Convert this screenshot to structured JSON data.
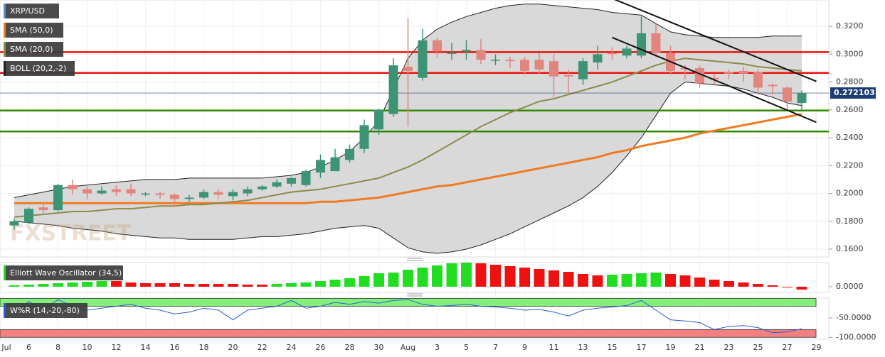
{
  "chart_data": [
    {
      "type": "candlestick",
      "name": "XRP/USD",
      "color_up": "#3d9475",
      "color_down": "#e2857e",
      "categories": [
        "Jul 5",
        "Jul 6",
        "Jul 7",
        "Jul 8",
        "Jul 9",
        "Jul 10",
        "Jul 11",
        "Jul 12",
        "Jul 13",
        "Jul 14",
        "Jul 15",
        "Jul 16",
        "Jul 17",
        "Jul 18",
        "Jul 19",
        "Jul 20",
        "Jul 21",
        "Jul 22",
        "Jul 23",
        "Jul 24",
        "Jul 25",
        "Jul 26",
        "Jul 27",
        "Jul 28",
        "Jul 29",
        "Jul 30",
        "Jul 31",
        "Aug 1",
        "Aug 2",
        "Aug 3",
        "Aug 4",
        "Aug 5",
        "Aug 6",
        "Aug 7",
        "Aug 8",
        "Aug 9",
        "Aug 10",
        "Aug 11",
        "Aug 12",
        "Aug 13",
        "Aug 14",
        "Aug 15",
        "Aug 16",
        "Aug 17",
        "Aug 18",
        "Aug 19",
        "Aug 20",
        "Aug 21",
        "Aug 22",
        "Aug 23",
        "Aug 24",
        "Aug 25",
        "Aug 26",
        "Aug 27",
        "Aug 28"
      ],
      "open": [
        0.177,
        0.179,
        0.19,
        0.188,
        0.206,
        0.203,
        0.2,
        0.203,
        0.203,
        0.2,
        0.2,
        0.199,
        0.196,
        0.197,
        0.201,
        0.198,
        0.2,
        0.203,
        0.205,
        0.207,
        0.206,
        0.215,
        0.216,
        0.224,
        0.232,
        0.246,
        0.257,
        0.291,
        0.283,
        0.31,
        0.301,
        0.302,
        0.303,
        0.296,
        0.296,
        0.296,
        0.296,
        0.295,
        0.285,
        0.282,
        0.294,
        0.301,
        0.299,
        0.299,
        0.315,
        0.301,
        0.29,
        0.29,
        0.283,
        0.287,
        0.288,
        0.287,
        0.278,
        0.276,
        0.265
      ],
      "high": [
        0.182,
        0.19,
        0.192,
        0.207,
        0.21,
        0.205,
        0.205,
        0.206,
        0.207,
        0.201,
        0.201,
        0.2,
        0.199,
        0.203,
        0.203,
        0.203,
        0.205,
        0.206,
        0.21,
        0.212,
        0.217,
        0.228,
        0.232,
        0.235,
        0.253,
        0.261,
        0.297,
        0.326,
        0.318,
        0.312,
        0.308,
        0.31,
        0.311,
        0.3,
        0.298,
        0.298,
        0.301,
        0.3,
        0.289,
        0.297,
        0.306,
        0.305,
        0.306,
        0.327,
        0.322,
        0.306,
        0.292,
        0.292,
        0.286,
        0.289,
        0.291,
        0.289,
        0.279,
        0.277,
        0.274
      ],
      "low": [
        0.174,
        0.178,
        0.186,
        0.187,
        0.199,
        0.196,
        0.199,
        0.198,
        0.198,
        0.198,
        0.196,
        0.19,
        0.194,
        0.196,
        0.196,
        0.195,
        0.198,
        0.202,
        0.204,
        0.205,
        0.205,
        0.211,
        0.216,
        0.222,
        0.229,
        0.242,
        0.255,
        0.248,
        0.281,
        0.297,
        0.296,
        0.296,
        0.293,
        0.292,
        0.29,
        0.285,
        0.286,
        0.269,
        0.272,
        0.278,
        0.289,
        0.296,
        0.297,
        0.297,
        0.298,
        0.285,
        0.282,
        0.276,
        0.278,
        0.282,
        0.28,
        0.271,
        0.271,
        0.259,
        0.26
      ],
      "close": [
        0.18,
        0.189,
        0.188,
        0.206,
        0.203,
        0.2,
        0.202,
        0.201,
        0.2,
        0.2,
        0.199,
        0.196,
        0.197,
        0.201,
        0.199,
        0.201,
        0.203,
        0.205,
        0.208,
        0.211,
        0.216,
        0.224,
        0.226,
        0.232,
        0.249,
        0.26,
        0.292,
        0.288,
        0.31,
        0.302,
        0.301,
        0.303,
        0.296,
        0.296,
        0.295,
        0.288,
        0.289,
        0.284,
        0.284,
        0.295,
        0.3,
        0.3,
        0.304,
        0.315,
        0.301,
        0.288,
        0.289,
        0.279,
        0.282,
        0.286,
        0.286,
        0.276,
        0.277,
        0.266,
        0.272
      ],
      "overlays": [
        {
          "name": "SMA (50,0)",
          "color": "#f07b22",
          "values": [
            0.193,
            0.193,
            0.193,
            0.193,
            0.193,
            0.193,
            0.193,
            0.193,
            0.193,
            0.193,
            0.193,
            0.193,
            0.193,
            0.193,
            0.193,
            0.193,
            0.193,
            0.193,
            0.193,
            0.193,
            0.193,
            0.194,
            0.194,
            0.195,
            0.196,
            0.197,
            0.199,
            0.201,
            0.203,
            0.205,
            0.206,
            0.208,
            0.21,
            0.212,
            0.214,
            0.216,
            0.218,
            0.22,
            0.222,
            0.224,
            0.226,
            0.229,
            0.231,
            0.234,
            0.236,
            0.238,
            0.24,
            0.243,
            0.245,
            0.247,
            0.249,
            0.251,
            0.253,
            0.255,
            0.257
          ]
        },
        {
          "name": "SMA (20,0)",
          "color": "#8e8a4a",
          "values": [
            0.183,
            0.184,
            0.185,
            0.186,
            0.187,
            0.187,
            0.188,
            0.189,
            0.189,
            0.19,
            0.191,
            0.191,
            0.192,
            0.192,
            0.193,
            0.194,
            0.195,
            0.197,
            0.199,
            0.201,
            0.202,
            0.203,
            0.205,
            0.207,
            0.209,
            0.211,
            0.215,
            0.219,
            0.224,
            0.23,
            0.236,
            0.242,
            0.248,
            0.253,
            0.258,
            0.262,
            0.266,
            0.268,
            0.271,
            0.274,
            0.277,
            0.28,
            0.284,
            0.288,
            0.292,
            0.295,
            0.297,
            0.296,
            0.295,
            0.294,
            0.293,
            0.291,
            0.29,
            0.289,
            0.288
          ]
        }
      ],
      "bollinger": {
        "name": "BOLL (20,2,-2)",
        "color": "#222222",
        "fill": "#d9d9d9",
        "upper": [
          0.197,
          0.199,
          0.201,
          0.203,
          0.205,
          0.206,
          0.207,
          0.208,
          0.209,
          0.21,
          0.21,
          0.21,
          0.211,
          0.211,
          0.211,
          0.211,
          0.211,
          0.211,
          0.212,
          0.213,
          0.215,
          0.219,
          0.224,
          0.23,
          0.24,
          0.252,
          0.275,
          0.297,
          0.31,
          0.318,
          0.323,
          0.327,
          0.33,
          0.333,
          0.335,
          0.336,
          0.336,
          0.335,
          0.334,
          0.333,
          0.332,
          0.33,
          0.329,
          0.328,
          0.322,
          0.316,
          0.314,
          0.313,
          0.312,
          0.312,
          0.312,
          0.312,
          0.313,
          0.313,
          0.313
        ],
        "lower": [
          0.18,
          0.179,
          0.178,
          0.177,
          0.175,
          0.174,
          0.173,
          0.171,
          0.17,
          0.169,
          0.168,
          0.168,
          0.167,
          0.167,
          0.167,
          0.167,
          0.168,
          0.169,
          0.169,
          0.17,
          0.171,
          0.173,
          0.175,
          0.176,
          0.177,
          0.175,
          0.168,
          0.161,
          0.158,
          0.157,
          0.158,
          0.16,
          0.163,
          0.167,
          0.171,
          0.176,
          0.181,
          0.186,
          0.191,
          0.197,
          0.205,
          0.215,
          0.227,
          0.24,
          0.256,
          0.272,
          0.28,
          0.279,
          0.278,
          0.277,
          0.275,
          0.272,
          0.269,
          0.265,
          0.263
        ]
      },
      "levels": [
        {
          "value": 0.3015,
          "color": "#e8130c"
        },
        {
          "value": 0.2865,
          "color": "#e8130c"
        },
        {
          "value": 0.2595,
          "color": "#2e8b00"
        },
        {
          "value": 0.2445,
          "color": "#2e8b00"
        }
      ],
      "trendlines": [
        {
          "x": [
            "Aug 15",
            "Aug 29"
          ],
          "y": [
            0.34,
            0.2805
          ]
        },
        {
          "x": [
            "Aug 15",
            "Aug 29"
          ],
          "y": [
            0.312,
            0.2511
          ]
        }
      ],
      "last_price": 0.272103,
      "watermark": "FXSTREET",
      "ylim": [
        0.1544,
        0.3389
      ],
      "yticks": [
        {
          "value": 0.16,
          "label": "0.1600"
        },
        {
          "value": 0.18,
          "label": "0.1800"
        },
        {
          "value": 0.2,
          "label": "0.2000"
        },
        {
          "value": 0.22,
          "label": "0.2200"
        },
        {
          "value": 0.24,
          "label": "0.2400"
        },
        {
          "value": 0.26,
          "label": "0.2600"
        },
        {
          "value": 0.28,
          "label": "0.2800"
        },
        {
          "value": 0.3,
          "label": "0.3000"
        },
        {
          "value": 0.32,
          "label": "0.3200"
        }
      ],
      "xticks": [
        {
          "value": "Jul 4",
          "label": "Jul"
        },
        {
          "value": "Jul 6",
          "label": "6"
        },
        {
          "value": "Jul 8",
          "label": "8"
        },
        {
          "value": "Jul 10",
          "label": "10"
        },
        {
          "value": "Jul 12",
          "label": "12"
        },
        {
          "value": "Jul 14",
          "label": "14"
        },
        {
          "value": "Jul 16",
          "label": "16"
        },
        {
          "value": "Jul 18",
          "label": "18"
        },
        {
          "value": "Jul 20",
          "label": "20"
        },
        {
          "value": "Jul 22",
          "label": "22"
        },
        {
          "value": "Jul 24",
          "label": "24"
        },
        {
          "value": "Jul 26",
          "label": "26"
        },
        {
          "value": "Jul 28",
          "label": "28"
        },
        {
          "value": "Jul 30",
          "label": "30"
        },
        {
          "value": "Aug 1",
          "label": "Aug"
        },
        {
          "value": "Aug 3",
          "label": "3"
        },
        {
          "value": "Aug 5",
          "label": "5"
        },
        {
          "value": "Aug 7",
          "label": "7"
        },
        {
          "value": "Aug 9",
          "label": "9"
        },
        {
          "value": "Aug 11",
          "label": "11"
        },
        {
          "value": "Aug 13",
          "label": "13"
        },
        {
          "value": "Aug 15",
          "label": "15"
        },
        {
          "value": "Aug 17",
          "label": "17"
        },
        {
          "value": "Aug 19",
          "label": "19"
        },
        {
          "value": "Aug 21",
          "label": "21"
        },
        {
          "value": "Aug 23",
          "label": "23"
        },
        {
          "value": "Aug 25",
          "label": "25"
        },
        {
          "value": "Aug 27",
          "label": "27"
        },
        {
          "value": "Aug 29",
          "label": "29"
        }
      ],
      "grid": true
    },
    {
      "type": "bar",
      "name": "Elliott Wave Oscillator (34,5)",
      "color_up": "#22dd22",
      "color_down": "#ee1111",
      "values": [
        0.002,
        0.003,
        0.004,
        0.005,
        0.006,
        0.007,
        0.008,
        0.008,
        0.006,
        0.005,
        0.005,
        0.005,
        0.004,
        0.004,
        0.004,
        0.004,
        0.003,
        0.003,
        0.004,
        0.005,
        0.006,
        0.008,
        0.01,
        0.012,
        0.015,
        0.019,
        0.02,
        0.024,
        0.027,
        0.03,
        0.033,
        0.034,
        0.033,
        0.031,
        0.029,
        0.027,
        0.025,
        0.023,
        0.021,
        0.018,
        0.016,
        0.017,
        0.018,
        0.019,
        0.02,
        0.018,
        0.016,
        0.013,
        0.01,
        0.008,
        0.006,
        0.004,
        0.002,
        -0.001,
        -0.004
      ],
      "ylim": [
        -0.008,
        0.034
      ],
      "yticks": [
        {
          "value": 0,
          "label": "0.0000"
        }
      ]
    },
    {
      "type": "line",
      "name": "W%R (14,-20,-80)",
      "color": "#2a5bd7",
      "values": [
        -30,
        -8,
        -28,
        -3,
        -20,
        -30,
        -25,
        -20,
        -15,
        -25,
        -30,
        -40,
        -35,
        -25,
        -30,
        -55,
        -30,
        -25,
        -20,
        -5,
        -25,
        -20,
        -10,
        -15,
        -8,
        -12,
        -5,
        -3,
        -15,
        -20,
        -18,
        -15,
        -20,
        -22,
        -25,
        -30,
        -28,
        -35,
        -45,
        -30,
        -25,
        -22,
        -18,
        -5,
        -30,
        -55,
        -58,
        -62,
        -80,
        -72,
        -70,
        -75,
        -88,
        -86,
        -78
      ],
      "bands": [
        {
          "from": -20,
          "to": 0,
          "color": "#84f07c"
        },
        {
          "from": -100,
          "to": -80,
          "color": "#f28080"
        }
      ],
      "ylim": [
        -105,
        1
      ],
      "yticks": [
        {
          "value": -50,
          "label": "-50.0000"
        },
        {
          "value": -100,
          "label": "-100.0000"
        }
      ]
    }
  ]
}
